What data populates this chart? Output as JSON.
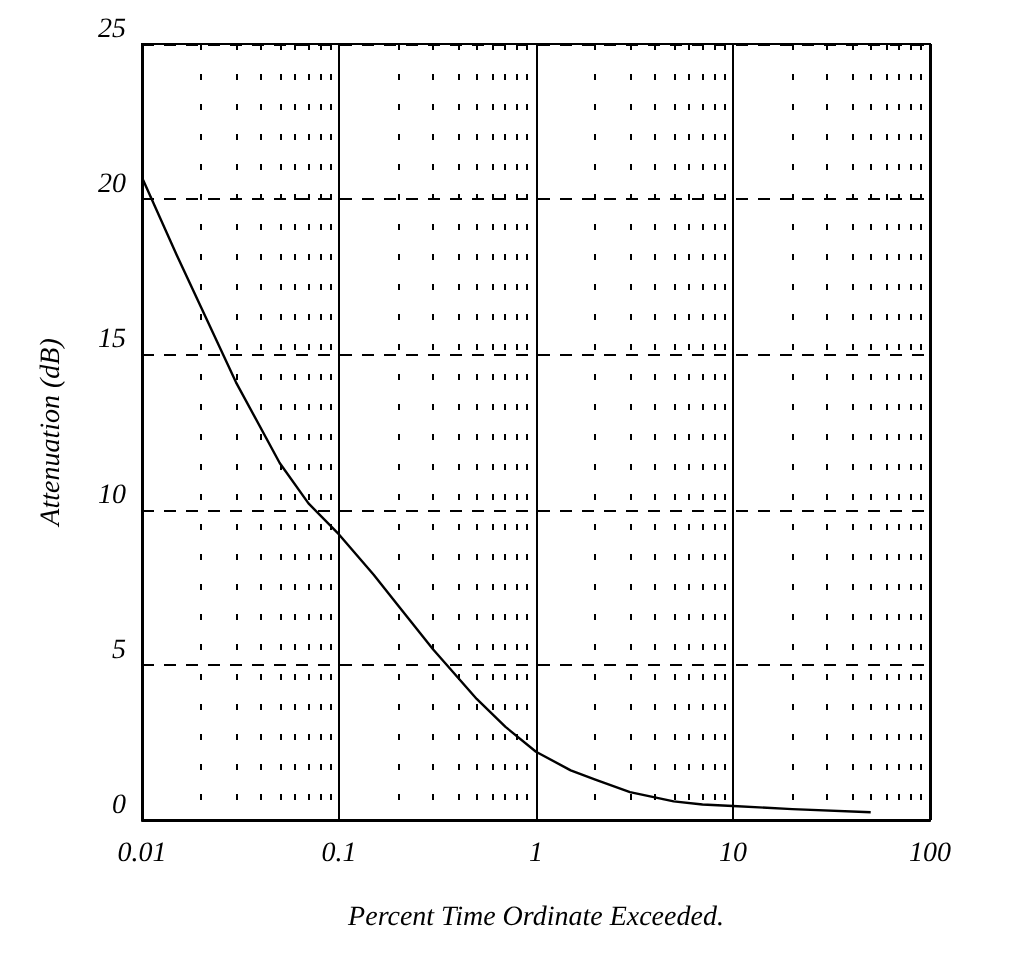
{
  "chart_data": {
    "type": "line",
    "xlabel": "Percent Time Ordinate Exceeded.",
    "ylabel": "Attenuation (dB)",
    "log": "x",
    "grid": true,
    "marker": "none",
    "line_style": "solid",
    "x": [
      0.01,
      0.015,
      0.02,
      0.03,
      0.05,
      0.07,
      0.1,
      0.15,
      0.2,
      0.3,
      0.5,
      0.7,
      1,
      1.5,
      2,
      3,
      5,
      7,
      10,
      20,
      50
    ],
    "series": [
      {
        "color": "#000000",
        "values": [
          20.7,
          18.2,
          16.5,
          14.1,
          11.5,
          10.2,
          9.2,
          7.9,
          6.9,
          5.5,
          3.9,
          3.0,
          2.2,
          1.6,
          1.3,
          0.9,
          0.6,
          0.5,
          0.45,
          0.35,
          0.25
        ]
      }
    ],
    "xlim": [
      0.01,
      100
    ],
    "xticks": [
      0.01,
      0.1,
      1,
      10,
      100
    ],
    "ylim": [
      0,
      25
    ],
    "yticks": [
      0,
      5,
      10,
      15,
      20,
      25
    ]
  }
}
